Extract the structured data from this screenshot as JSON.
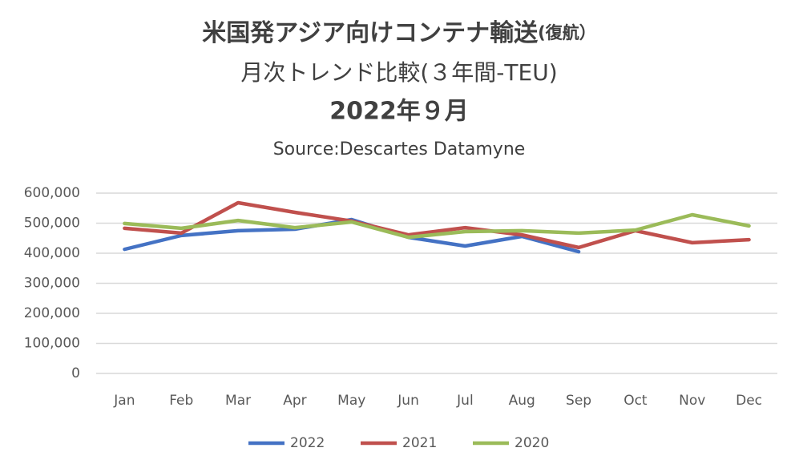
{
  "chart_data": {
    "type": "line",
    "title": "米国発アジア向けコンテナ輸送",
    "title_suffix": "(復航）",
    "title_line2": "月次トレンド比較(３年間-TEU)",
    "title_line3": "2022年９月",
    "subtitle": "Source:Descartes Datamyne",
    "categories": [
      "Jan",
      "Feb",
      "Mar",
      "Apr",
      "May",
      "Jun",
      "Jul",
      "Aug",
      "Sep",
      "Oct",
      "Nov",
      "Dec"
    ],
    "series": [
      {
        "name": "2022",
        "color": "#4472c4",
        "values": [
          413000,
          459000,
          475000,
          480000,
          512000,
          453000,
          424000,
          456000,
          405000,
          null,
          null,
          null
        ]
      },
      {
        "name": "2021",
        "color": "#c0504d",
        "values": [
          483000,
          467000,
          568000,
          536000,
          507000,
          461000,
          485000,
          461000,
          419000,
          475000,
          435000,
          445000
        ]
      },
      {
        "name": "2020",
        "color": "#9bbb59",
        "values": [
          499000,
          483000,
          509000,
          485000,
          504000,
          453000,
          472000,
          475000,
          467000,
          477000,
          528000,
          491000
        ]
      }
    ],
    "ylim": [
      0,
      600000
    ],
    "yticks": [
      0,
      {
        "value": 100000,
        "label": "100,000"
      },
      {
        "value": 200000,
        "label": "200,000"
      },
      {
        "value": 300000,
        "label": "300,000"
      },
      {
        "value": 400000,
        "label": "400,000"
      },
      {
        "value": 500000,
        "label": "500,000"
      },
      {
        "value": 600000,
        "label": "600,000"
      }
    ],
    "grid": true,
    "legend": "bottom"
  }
}
